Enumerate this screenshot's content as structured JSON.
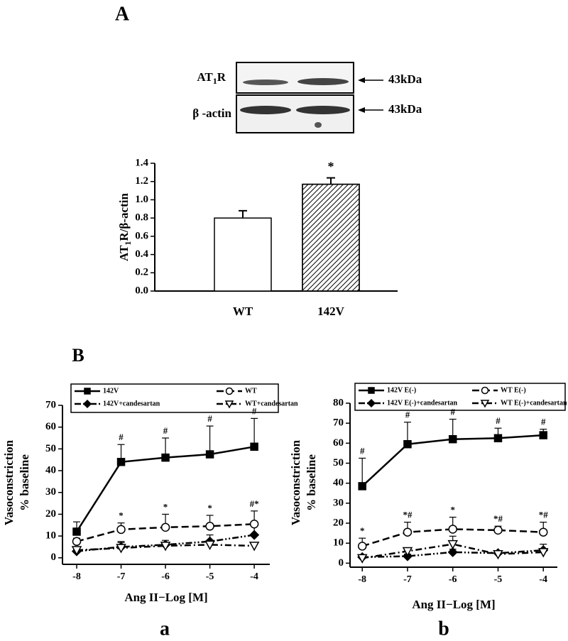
{
  "panel_labels": [
    "A",
    "B",
    "a",
    "b"
  ],
  "blot": {
    "rows": [
      {
        "label": [
          "AT",
          "1",
          "R"
        ],
        "size": "43kDa"
      },
      {
        "label": [
          "β -actin"
        ],
        "size": "43kDa"
      }
    ]
  },
  "chart_data": [
    {
      "type": "bar",
      "ylabel": [
        "AT",
        "1",
        "R/β-actin"
      ],
      "categories": [
        "WT",
        "142V"
      ],
      "values": [
        0.8,
        1.17
      ],
      "errors": [
        0.08,
        0.07
      ],
      "annotations": [
        null,
        "*"
      ],
      "colors": [
        "#ffffff",
        "#ffffff"
      ],
      "hatch": [
        false,
        true
      ],
      "ylim": [
        0,
        1.4
      ],
      "yticks": [
        {
          "value": 0,
          "label": "0.0"
        },
        0.2,
        0.4,
        0.6,
        0.8,
        {
          "value": 1,
          "label": "1.0"
        },
        1.2,
        1.4
      ]
    },
    {
      "type": "line",
      "ylabel": [
        "Vasoconstriction",
        "% baseline"
      ],
      "xlabel": "Ang II−Log [M]",
      "x": [
        -8,
        -7,
        -6,
        -5,
        -4
      ],
      "xlim": [
        -8.32,
        -3.65
      ],
      "xticks": [
        -8,
        -7,
        -6,
        -5,
        -4
      ],
      "ylim": [
        -3,
        70
      ],
      "yticks": [
        0,
        10,
        20,
        30,
        40,
        50,
        60,
        70
      ],
      "series": [
        {
          "name": "142V",
          "color": "#000000",
          "marker": "square",
          "filled": true,
          "dash": "solid",
          "values": [
            12,
            44,
            46,
            47.5,
            51
          ],
          "errors": [
            4.5,
            8,
            9,
            13,
            13
          ],
          "annotations": [
            null,
            "#",
            "#",
            "#",
            "#"
          ]
        },
        {
          "name": "WT",
          "color": "#000000",
          "marker": "circle",
          "filled": false,
          "dash": "dash",
          "values": [
            7.5,
            13,
            14,
            14.5,
            15.5
          ],
          "errors": [
            1.5,
            3,
            6,
            5,
            6
          ],
          "annotations": [
            null,
            "*",
            "*",
            "*",
            "#*"
          ]
        },
        {
          "name": "142V+candesartan",
          "color": "#000000",
          "marker": "diamond",
          "filled": true,
          "dash": "dashdotdot",
          "values": [
            3,
            5,
            6,
            7.5,
            10.5
          ],
          "errors": [
            1,
            2,
            2,
            3,
            4
          ],
          "annotations": [
            null,
            null,
            null,
            null,
            null
          ]
        },
        {
          "name": "WT+candesartan",
          "color": "#000000",
          "marker": "triangle-down",
          "filled": false,
          "dash": "dashdot",
          "values": [
            3.5,
            4.5,
            5.5,
            6,
            5.5
          ],
          "errors": [
            1,
            3,
            1.5,
            1.5,
            1
          ],
          "annotations": [
            null,
            null,
            null,
            null,
            null
          ]
        }
      ]
    },
    {
      "type": "line",
      "ylabel": [
        "Vasoconstriction",
        "% baseline"
      ],
      "xlabel": "Ang II−Log [M]",
      "x": [
        -8,
        -7,
        -6,
        -5,
        -4
      ],
      "xlim": [
        -8.27,
        -3.69
      ],
      "xticks": [
        -8,
        -7,
        -6,
        -5,
        -4
      ],
      "ylim": [
        -2,
        80
      ],
      "yticks": [
        0,
        10,
        20,
        30,
        40,
        50,
        60,
        70,
        80
      ],
      "series": [
        {
          "name": "142V E(-)",
          "color": "#000000",
          "marker": "square",
          "filled": true,
          "dash": "solid",
          "values": [
            38.5,
            59.5,
            62,
            62.5,
            64
          ],
          "errors": [
            14,
            11,
            10,
            5,
            3
          ],
          "annotations": [
            "#",
            "#",
            "#",
            "#",
            "#"
          ]
        },
        {
          "name": "WT E(-)",
          "color": "#000000",
          "marker": "circle",
          "filled": false,
          "dash": "dash",
          "values": [
            8.5,
            15.5,
            17,
            16.5,
            15.5
          ],
          "errors": [
            4,
            5,
            6,
            2,
            5
          ],
          "annotations": [
            "*",
            "*#",
            "*",
            "*#",
            "*#"
          ]
        },
        {
          "name": "142V E(-)+candesartan",
          "color": "#000000",
          "marker": "diamond",
          "filled": true,
          "dash": "dashdotdot",
          "values": [
            3,
            3.5,
            5.5,
            5,
            6.5
          ],
          "errors": [
            1,
            1,
            1.5,
            1,
            3
          ],
          "annotations": [
            null,
            null,
            null,
            null,
            null
          ]
        },
        {
          "name": "WT E(-)+candesartan",
          "color": "#000000",
          "marker": "triangle-down",
          "filled": false,
          "dash": "dashdot",
          "values": [
            2.5,
            6,
            9.5,
            4.5,
            5.5
          ],
          "errors": [
            1,
            1.5,
            4,
            1,
            1.5
          ],
          "annotations": [
            null,
            null,
            null,
            null,
            null
          ]
        }
      ]
    }
  ]
}
